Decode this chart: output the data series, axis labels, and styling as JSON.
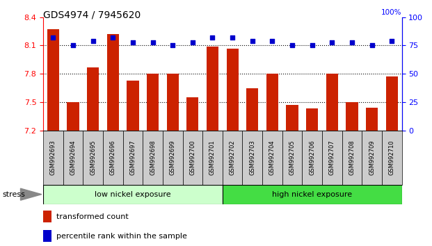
{
  "title": "GDS4974 / 7945620",
  "samples": [
    "GSM992693",
    "GSM992694",
    "GSM992695",
    "GSM992696",
    "GSM992697",
    "GSM992698",
    "GSM992699",
    "GSM992700",
    "GSM992701",
    "GSM992702",
    "GSM992703",
    "GSM992704",
    "GSM992705",
    "GSM992706",
    "GSM992707",
    "GSM992708",
    "GSM992709",
    "GSM992710"
  ],
  "bar_values": [
    8.27,
    7.5,
    7.87,
    8.22,
    7.73,
    7.8,
    7.8,
    7.55,
    8.09,
    8.07,
    7.65,
    7.8,
    7.47,
    7.43,
    7.8,
    7.5,
    7.44,
    7.77
  ],
  "dot_values": [
    82,
    75,
    79,
    82,
    78,
    78,
    75,
    78,
    82,
    82,
    79,
    79,
    75,
    75,
    78,
    78,
    75,
    79
  ],
  "ylim_left": [
    7.2,
    8.4
  ],
  "ylim_right": [
    0,
    100
  ],
  "yticks_left": [
    7.2,
    7.5,
    7.8,
    8.1,
    8.4
  ],
  "yticks_right": [
    0,
    25,
    50,
    75,
    100
  ],
  "bar_color": "#cc2200",
  "dot_color": "#0000cc",
  "group1_label": "low nickel exposure",
  "group2_label": "high nickel exposure",
  "group1_color": "#ccffcc",
  "group2_color": "#44dd44",
  "group1_count": 9,
  "group2_count": 9,
  "stress_label": "stress",
  "legend1": "transformed count",
  "legend2": "percentile rank within the sample",
  "tick_label_bg": "#cccccc",
  "dotgrid_vals": [
    7.5,
    7.8,
    8.1
  ]
}
